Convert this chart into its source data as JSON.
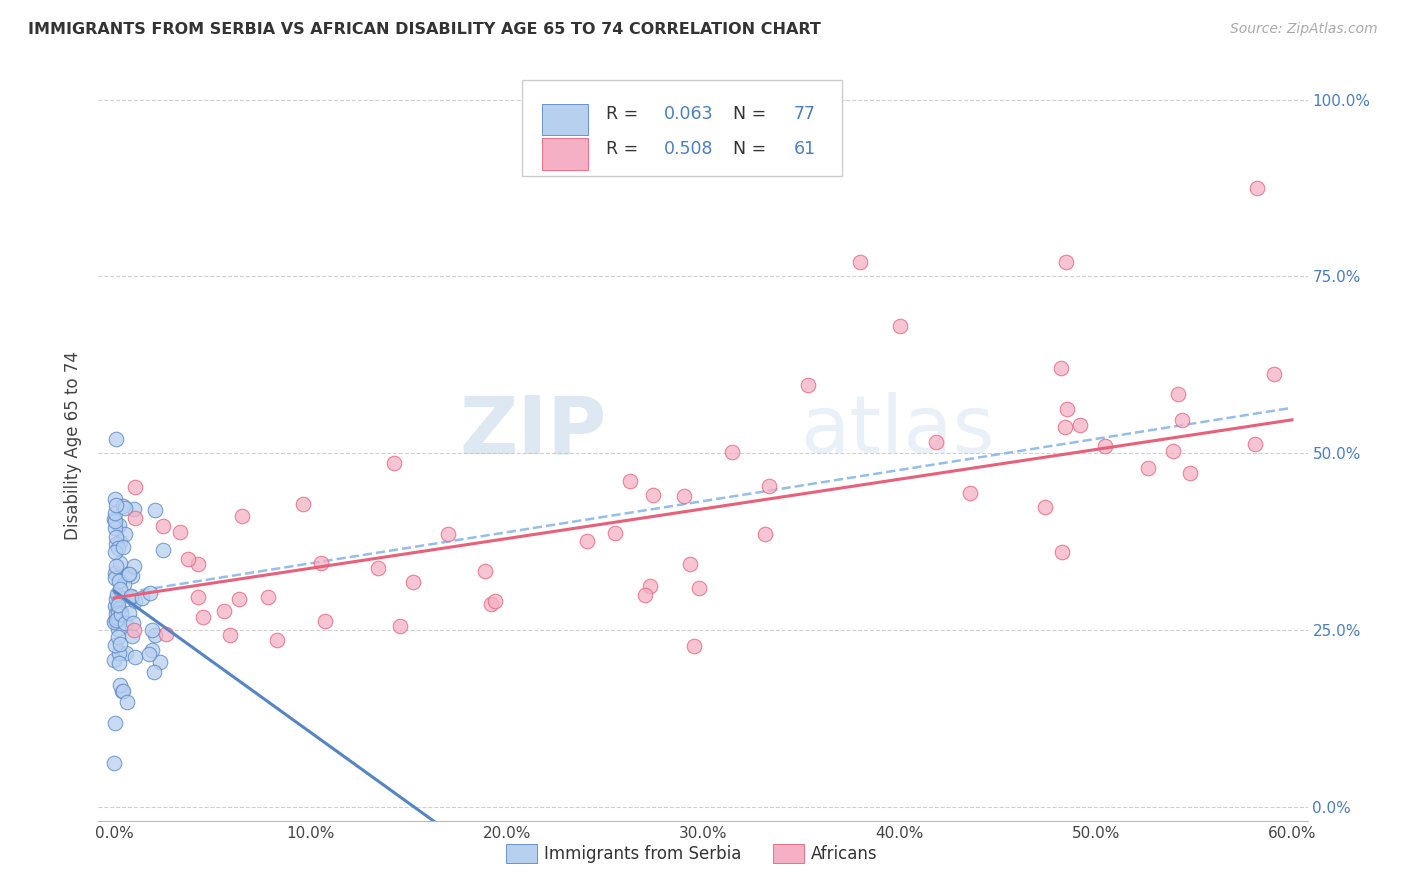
{
  "title": "IMMIGRANTS FROM SERBIA VS AFRICAN DISABILITY AGE 65 TO 74 CORRELATION CHART",
  "source": "Source: ZipAtlas.com",
  "ylabel_label": "Disability Age 65 to 74",
  "legend_series": [
    {
      "label": "Immigrants from Serbia",
      "R": "0.063",
      "N": "77",
      "color": "#b8d0f0",
      "line_color": "#5585c5"
    },
    {
      "label": "Africans",
      "R": "0.508",
      "N": "61",
      "color": "#f5b0c5",
      "line_color": "#e8607a"
    }
  ],
  "watermark": "ZIPatlas",
  "serbia_seed": 42,
  "african_seed": 7,
  "xlim": [
    0.0,
    0.6
  ],
  "ylim": [
    0.0,
    1.0
  ],
  "x_ticks": [
    0.0,
    0.1,
    0.2,
    0.3,
    0.4,
    0.5,
    0.6
  ],
  "x_tick_labels": [
    "0.0%",
    "10.0%",
    "20.0%",
    "30.0%",
    "40.0%",
    "50.0%",
    "60.0%"
  ],
  "y_ticks": [
    0.0,
    0.25,
    0.5,
    0.75,
    1.0
  ],
  "y_tick_labels": [
    "0.0%",
    "25.0%",
    "50.0%",
    "75.0%",
    "100.0%"
  ]
}
